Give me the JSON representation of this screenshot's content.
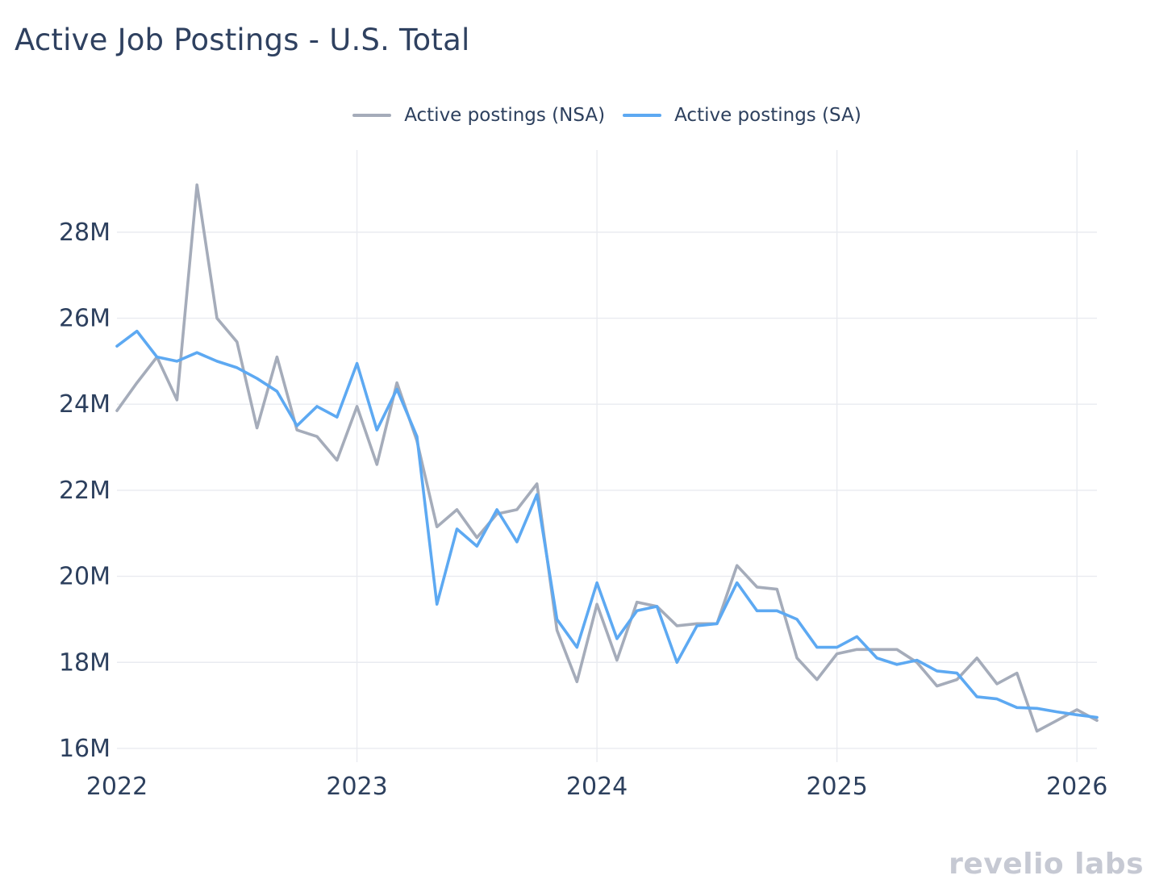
{
  "title": "Active Job Postings - U.S. Total",
  "watermark": {
    "brand": "revelio labs"
  },
  "chart_data": {
    "type": "line",
    "title": "Active Job Postings - U.S. Total",
    "xlabel": "",
    "ylabel": "",
    "x_unit": "month",
    "x": [
      "2022-01",
      "2022-02",
      "2022-03",
      "2022-04",
      "2022-05",
      "2022-06",
      "2022-07",
      "2022-08",
      "2022-09",
      "2022-10",
      "2022-11",
      "2022-12",
      "2023-01",
      "2023-02",
      "2023-03",
      "2023-04",
      "2023-05",
      "2023-06",
      "2023-07",
      "2023-08",
      "2023-09",
      "2023-10",
      "2023-11",
      "2023-12",
      "2024-01",
      "2024-02",
      "2024-03",
      "2024-04",
      "2024-05",
      "2024-06",
      "2024-07",
      "2024-08",
      "2024-09",
      "2024-10",
      "2024-11",
      "2024-12",
      "2025-01",
      "2025-02",
      "2025-03",
      "2025-04",
      "2025-05",
      "2025-06",
      "2025-07",
      "2025-08",
      "2025-09",
      "2025-10",
      "2025-11",
      "2025-12",
      "2026-01",
      "2026-02"
    ],
    "series": [
      {
        "id": "nsa",
        "name": "Active postings (NSA)",
        "color": "#a5acba",
        "unit": "millions",
        "values": [
          23.85,
          24.5,
          25.1,
          24.1,
          29.1,
          26.0,
          25.45,
          23.45,
          25.1,
          23.4,
          23.25,
          22.7,
          23.95,
          22.6,
          24.5,
          23.15,
          21.15,
          21.55,
          20.9,
          21.45,
          21.55,
          22.15,
          18.75,
          17.55,
          19.35,
          18.05,
          19.4,
          19.3,
          18.85,
          18.9,
          18.9,
          20.25,
          19.75,
          19.7,
          18.1,
          17.6,
          18.2,
          18.3,
          18.3,
          18.3,
          18.0,
          17.45,
          17.6,
          18.1,
          17.5,
          17.75,
          16.4,
          16.65,
          16.9,
          16.65
        ]
      },
      {
        "id": "sa",
        "name": "Active postings (SA)",
        "color": "#5da9f2",
        "unit": "millions",
        "values": [
          25.35,
          25.7,
          25.1,
          25.0,
          25.2,
          25.0,
          24.85,
          24.6,
          24.3,
          23.5,
          23.95,
          23.7,
          24.95,
          23.4,
          24.35,
          23.25,
          19.35,
          21.1,
          20.7,
          21.55,
          20.8,
          21.9,
          19.0,
          18.35,
          19.85,
          18.55,
          19.2,
          19.3,
          18.0,
          18.85,
          18.9,
          19.85,
          19.2,
          19.2,
          19.0,
          18.35,
          18.35,
          18.6,
          18.1,
          17.95,
          18.05,
          17.8,
          17.75,
          17.2,
          17.15,
          16.95,
          16.93,
          16.85,
          16.78,
          16.72
        ]
      }
    ],
    "xticks": [
      {
        "label": "2022",
        "index": 0,
        "gridline": false
      },
      {
        "label": "2023",
        "index": 12,
        "gridline": true
      },
      {
        "label": "2024",
        "index": 24,
        "gridline": true
      },
      {
        "label": "2025",
        "index": 36,
        "gridline": true
      },
      {
        "label": "2026",
        "index": 48,
        "gridline": true
      }
    ],
    "yticks": [
      {
        "label": "16M",
        "value": 16
      },
      {
        "label": "18M",
        "value": 18
      },
      {
        "label": "20M",
        "value": 20
      },
      {
        "label": "22M",
        "value": 22
      },
      {
        "label": "24M",
        "value": 24
      },
      {
        "label": "26M",
        "value": 26
      },
      {
        "label": "28M",
        "value": 28
      }
    ],
    "ylim": [
      15.68,
      29.91
    ],
    "grid": true,
    "grid_color": "#e9ebf0",
    "legend_position": "top-center",
    "background": "#ffffff",
    "text_color": "#2d405e"
  }
}
